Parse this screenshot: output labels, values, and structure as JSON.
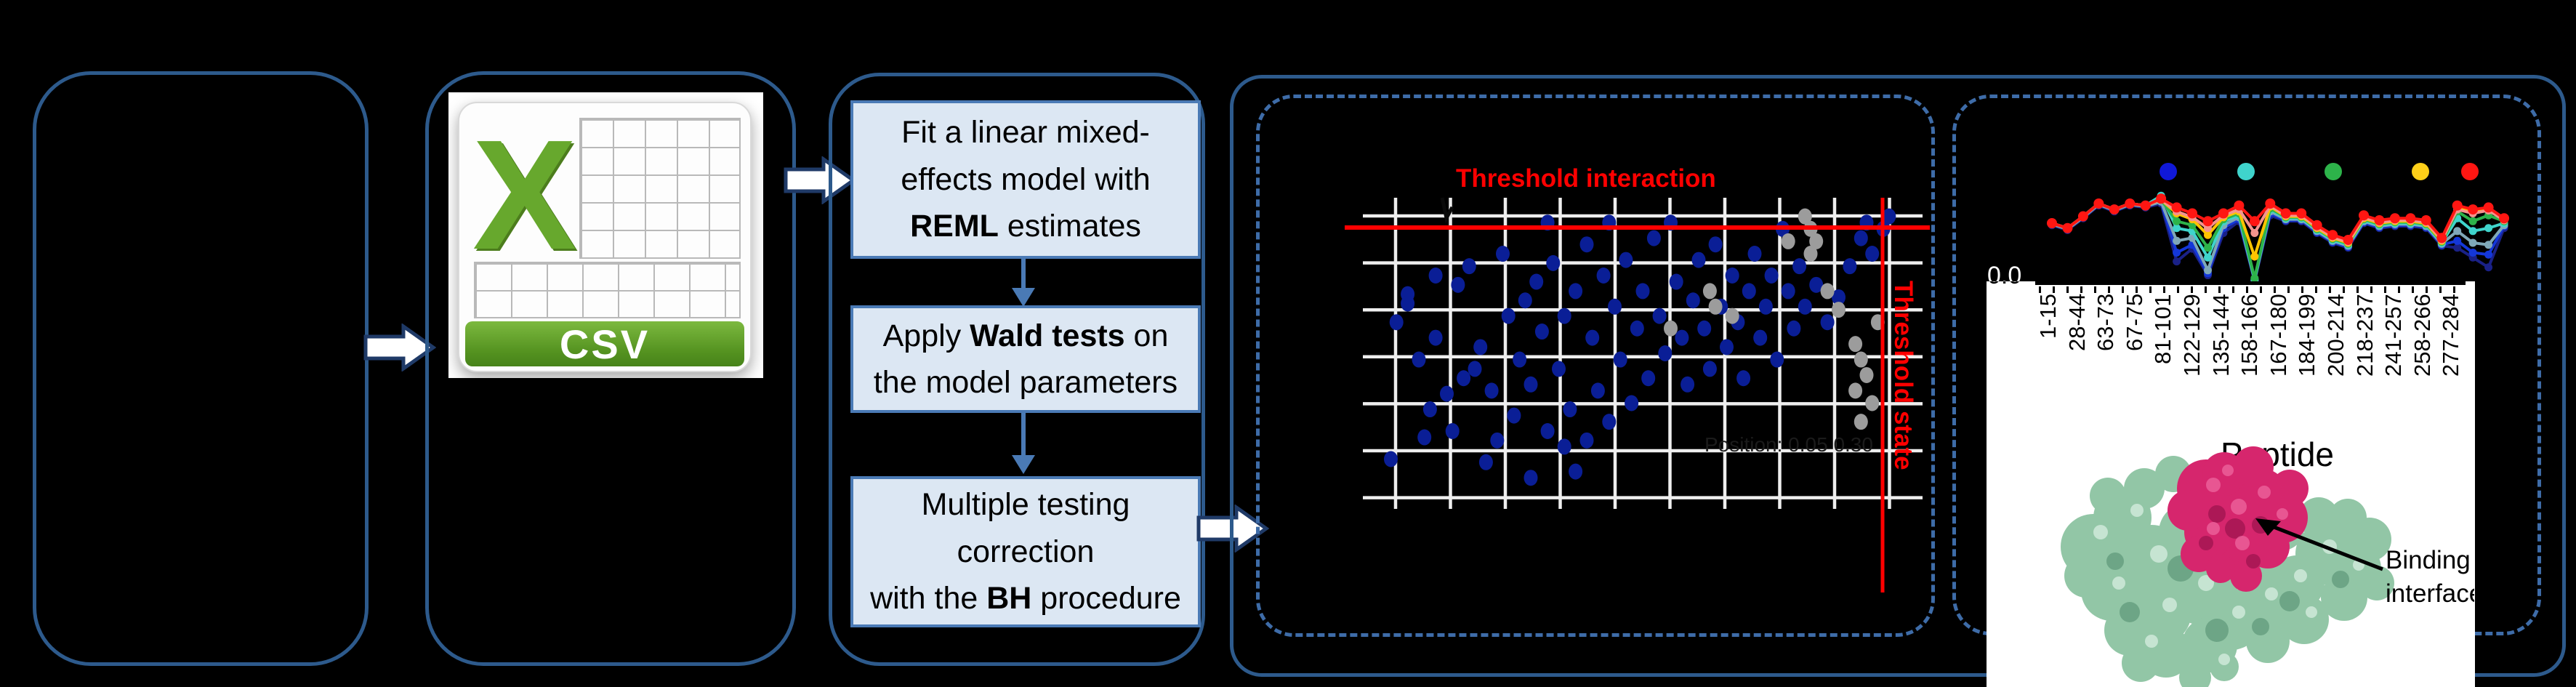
{
  "csv": {
    "label": "CSV"
  },
  "flow": {
    "steps": [
      {
        "lines": [
          [
            {
              "t": "Fit a linear mixed-"
            }
          ],
          [
            {
              "t": "effects model with"
            }
          ],
          [
            {
              "t": "REML",
              "b": true
            },
            {
              "t": " estimates"
            }
          ]
        ]
      },
      {
        "lines": [
          [
            {
              "t": "Apply "
            },
            {
              "t": "Wald tests",
              "b": true
            },
            {
              "t": " on"
            }
          ],
          [
            {
              "t": "the model parameters"
            }
          ]
        ]
      },
      {
        "lines": [
          [
            {
              "t": "Multiple testing"
            }
          ],
          [
            {
              "t": "correction"
            }
          ],
          [
            {
              "t": "with the "
            },
            {
              "t": "BH",
              "b": true
            },
            {
              "t": " procedure"
            }
          ]
        ]
      }
    ]
  },
  "labels": {
    "binding_line1": "Binding",
    "binding_line2": "interface"
  },
  "colors": {
    "outer_border": "#2d5a8c",
    "dashed_border": "#3e6ca8",
    "step_fill": "#dce7f3",
    "step_border": "#4a7ab5",
    "arrow_outline": "#1f3a67",
    "threshold_red": "#ff0000",
    "csv_green": "#5a9e2f",
    "protein_green": "#92c6a6",
    "protein_magenta": "#d6266d"
  },
  "chart_data": [
    {
      "type": "scatter",
      "title": "Threshold interaction",
      "title_color": "#ff0000",
      "right_label": "Threshold state",
      "faint_caption": "Position: 0.05 0.30",
      "grid": true,
      "grid_color": "#eeeeee",
      "point_color_blue": "#0a1e96",
      "point_color_gray": "#9c9c9c",
      "threshold_h_frac": 0.1,
      "threshold_v_frac": 0.93,
      "points_blue": [
        [
          0.05,
          0.84
        ],
        [
          0.06,
          0.4
        ],
        [
          0.08,
          0.31
        ],
        [
          0.08,
          0.34
        ],
        [
          0.1,
          0.52
        ],
        [
          0.11,
          0.77
        ],
        [
          0.12,
          0.68
        ],
        [
          0.13,
          0.25
        ],
        [
          0.13,
          0.45
        ],
        [
          0.15,
          0.63
        ],
        [
          0.16,
          0.75
        ],
        [
          0.17,
          0.28
        ],
        [
          0.18,
          0.58
        ],
        [
          0.19,
          0.22
        ],
        [
          0.2,
          0.55
        ],
        [
          0.21,
          0.48
        ],
        [
          0.22,
          0.85
        ],
        [
          0.23,
          0.62
        ],
        [
          0.24,
          0.78
        ],
        [
          0.25,
          0.18
        ],
        [
          0.26,
          0.38
        ],
        [
          0.27,
          0.7
        ],
        [
          0.28,
          0.52
        ],
        [
          0.29,
          0.33
        ],
        [
          0.3,
          0.9
        ],
        [
          0.3,
          0.6
        ],
        [
          0.31,
          0.27
        ],
        [
          0.32,
          0.43
        ],
        [
          0.33,
          0.08
        ],
        [
          0.33,
          0.75
        ],
        [
          0.34,
          0.21
        ],
        [
          0.35,
          0.55
        ],
        [
          0.36,
          0.38
        ],
        [
          0.36,
          0.8
        ],
        [
          0.37,
          0.68
        ],
        [
          0.38,
          0.3
        ],
        [
          0.38,
          0.88
        ],
        [
          0.4,
          0.15
        ],
        [
          0.4,
          0.78
        ],
        [
          0.41,
          0.45
        ],
        [
          0.42,
          0.62
        ],
        [
          0.43,
          0.25
        ],
        [
          0.44,
          0.08
        ],
        [
          0.44,
          0.72
        ],
        [
          0.45,
          0.35
        ],
        [
          0.46,
          0.52
        ],
        [
          0.47,
          0.2
        ],
        [
          0.48,
          0.66
        ],
        [
          0.49,
          0.42
        ],
        [
          0.5,
          0.3
        ],
        [
          0.51,
          0.58
        ],
        [
          0.52,
          0.13
        ],
        [
          0.53,
          0.38
        ],
        [
          0.54,
          0.5
        ],
        [
          0.55,
          0.08
        ],
        [
          0.56,
          0.27
        ],
        [
          0.57,
          0.45
        ],
        [
          0.58,
          0.6
        ],
        [
          0.59,
          0.33
        ],
        [
          0.6,
          0.2
        ],
        [
          0.61,
          0.42
        ],
        [
          0.62,
          0.55
        ],
        [
          0.63,
          0.15
        ],
        [
          0.64,
          0.35
        ],
        [
          0.65,
          0.48
        ],
        [
          0.66,
          0.25
        ],
        [
          0.67,
          0.4
        ],
        [
          0.68,
          0.58
        ],
        [
          0.69,
          0.3
        ],
        [
          0.7,
          0.18
        ],
        [
          0.71,
          0.45
        ],
        [
          0.72,
          0.35
        ],
        [
          0.73,
          0.25
        ],
        [
          0.74,
          0.52
        ],
        [
          0.75,
          0.1
        ],
        [
          0.76,
          0.3
        ],
        [
          0.77,
          0.42
        ],
        [
          0.78,
          0.22
        ],
        [
          0.79,
          0.35
        ],
        [
          0.81,
          0.28
        ],
        [
          0.83,
          0.4
        ],
        [
          0.85,
          0.32
        ],
        [
          0.87,
          0.22
        ],
        [
          0.89,
          0.13
        ],
        [
          0.9,
          0.08
        ],
        [
          0.91,
          0.18
        ],
        [
          0.93,
          0.1
        ],
        [
          0.94,
          0.06
        ]
      ],
      "points_gray": [
        [
          0.79,
          0.06
        ],
        [
          0.8,
          0.1
        ],
        [
          0.81,
          0.14
        ],
        [
          0.8,
          0.18
        ],
        [
          0.83,
          0.3
        ],
        [
          0.85,
          0.36
        ],
        [
          0.62,
          0.3
        ],
        [
          0.63,
          0.35
        ],
        [
          0.66,
          0.38
        ],
        [
          0.55,
          0.42
        ],
        [
          0.88,
          0.47
        ],
        [
          0.89,
          0.52
        ],
        [
          0.9,
          0.57
        ],
        [
          0.88,
          0.62
        ],
        [
          0.91,
          0.66
        ],
        [
          0.89,
          0.72
        ],
        [
          0.92,
          0.4
        ],
        [
          0.76,
          0.14
        ]
      ]
    },
    {
      "type": "line",
      "x_labels": [
        "1-15",
        "28-44",
        "63-73",
        "67-75",
        "81-101",
        "122-129",
        "135-144",
        "158-166",
        "167-180",
        "184-199",
        "200-214",
        "218-237",
        "241-257",
        "258-266",
        "277-284"
      ],
      "xlabel": "Peptide",
      "y_min_label": "0.0",
      "legend_dots": [
        "#1018d8",
        "#3fd4cc",
        "#2db34a",
        "#ffd019",
        "#ff1612"
      ],
      "series": [
        {
          "name": "navy",
          "color": "#1a2187",
          "values": [
            0.58,
            0.53,
            0.65,
            0.78,
            0.72,
            0.78,
            0.76,
            0.8,
            0.21,
            0.34,
            0.07,
            0.5,
            0.62,
            0.01,
            0.68,
            0.62,
            0.62,
            0.5,
            0.4,
            0.35,
            0.6,
            0.55,
            0.57,
            0.57,
            0.55,
            0.37,
            0.35,
            0.25,
            0.15,
            0.55
          ]
        },
        {
          "name": "blue",
          "color": "#1437d8",
          "values": [
            0.59,
            0.54,
            0.66,
            0.79,
            0.73,
            0.79,
            0.77,
            0.82,
            0.3,
            0.38,
            0.09,
            0.55,
            0.64,
            0.02,
            0.7,
            0.63,
            0.63,
            0.51,
            0.41,
            0.36,
            0.61,
            0.56,
            0.58,
            0.58,
            0.56,
            0.38,
            0.42,
            0.3,
            0.28,
            0.57
          ]
        },
        {
          "name": "steel",
          "color": "#7fa8b8",
          "values": [
            0.59,
            0.54,
            0.66,
            0.79,
            0.73,
            0.79,
            0.77,
            0.82,
            0.42,
            0.45,
            0.12,
            0.58,
            0.66,
            0.02,
            0.72,
            0.64,
            0.64,
            0.52,
            0.42,
            0.37,
            0.62,
            0.57,
            0.59,
            0.59,
            0.57,
            0.39,
            0.52,
            0.4,
            0.38,
            0.58
          ]
        },
        {
          "name": "turquoise",
          "color": "#3fd4cc",
          "values": [
            0.6,
            0.55,
            0.67,
            0.8,
            0.74,
            0.8,
            0.78,
            0.88,
            0.55,
            0.52,
            0.25,
            0.62,
            0.68,
            0.03,
            0.74,
            0.65,
            0.65,
            0.53,
            0.43,
            0.38,
            0.63,
            0.58,
            0.6,
            0.6,
            0.58,
            0.4,
            0.65,
            0.52,
            0.55,
            0.6
          ]
        },
        {
          "name": "green",
          "color": "#2db34a",
          "values": [
            0.6,
            0.55,
            0.67,
            0.8,
            0.74,
            0.8,
            0.78,
            0.84,
            0.62,
            0.58,
            0.35,
            0.64,
            0.7,
            0.04,
            0.75,
            0.66,
            0.66,
            0.54,
            0.44,
            0.39,
            0.64,
            0.59,
            0.61,
            0.61,
            0.59,
            0.41,
            0.72,
            0.62,
            0.68,
            0.62
          ]
        },
        {
          "name": "gold",
          "color": "#ffc400",
          "values": [
            0.6,
            0.55,
            0.67,
            0.8,
            0.74,
            0.8,
            0.78,
            0.84,
            0.7,
            0.64,
            0.48,
            0.66,
            0.72,
            0.26,
            0.77,
            0.67,
            0.67,
            0.55,
            0.45,
            0.4,
            0.65,
            0.6,
            0.62,
            0.62,
            0.6,
            0.42,
            0.76,
            0.72,
            0.74,
            0.63
          ]
        },
        {
          "name": "salmon",
          "color": "#f4948e",
          "values": [
            0.6,
            0.55,
            0.67,
            0.8,
            0.74,
            0.8,
            0.78,
            0.84,
            0.72,
            0.66,
            0.55,
            0.68,
            0.74,
            0.5,
            0.78,
            0.68,
            0.68,
            0.56,
            0.46,
            0.41,
            0.66,
            0.61,
            0.63,
            0.63,
            0.61,
            0.43,
            0.74,
            0.7,
            0.73,
            0.63
          ]
        },
        {
          "name": "red",
          "color": "#ff1612",
          "values": [
            0.6,
            0.55,
            0.67,
            0.8,
            0.74,
            0.8,
            0.78,
            0.85,
            0.76,
            0.7,
            0.62,
            0.7,
            0.78,
            0.62,
            0.8,
            0.7,
            0.7,
            0.58,
            0.48,
            0.43,
            0.68,
            0.63,
            0.65,
            0.65,
            0.63,
            0.45,
            0.78,
            0.74,
            0.76,
            0.65
          ]
        }
      ]
    }
  ]
}
